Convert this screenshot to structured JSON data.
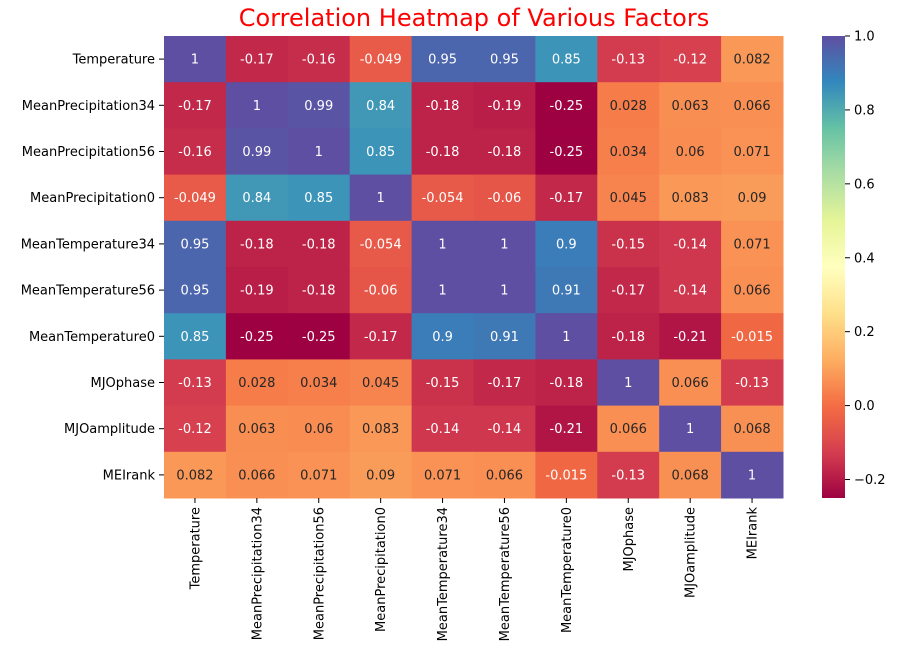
{
  "chart_data": {
    "type": "heatmap",
    "title": "Correlation Heatmap of Various Factors",
    "title_color": "#ff0000",
    "colormap": "Spectral",
    "row_labels": [
      "Temperature",
      "MeanPrecipitation34",
      "MeanPrecipitation56",
      "MeanPrecipitation0",
      "MeanTemperature34",
      "MeanTemperature56",
      "MeanTemperature0",
      "MJOphase",
      "MJOamplitude",
      "MEIrank"
    ],
    "col_labels": [
      "Temperature",
      "MeanPrecipitation34",
      "MeanPrecipitation56",
      "MeanPrecipitation0",
      "MeanTemperature34",
      "MeanTemperature56",
      "MeanTemperature0",
      "MJOphase",
      "MJOamplitude",
      "MEIrank"
    ],
    "values": [
      [
        1,
        -0.17,
        -0.16,
        -0.049,
        0.95,
        0.95,
        0.85,
        -0.13,
        -0.12,
        0.082
      ],
      [
        -0.17,
        1,
        0.99,
        0.84,
        -0.18,
        -0.19,
        -0.25,
        0.028,
        0.063,
        0.066
      ],
      [
        -0.16,
        0.99,
        1,
        0.85,
        -0.18,
        -0.18,
        -0.25,
        0.034,
        0.06,
        0.071
      ],
      [
        -0.049,
        0.84,
        0.85,
        1,
        -0.054,
        -0.06,
        -0.17,
        0.045,
        0.083,
        0.09
      ],
      [
        0.95,
        -0.18,
        -0.18,
        -0.054,
        1,
        1,
        0.9,
        -0.15,
        -0.14,
        0.071
      ],
      [
        0.95,
        -0.19,
        -0.18,
        -0.06,
        1,
        1,
        0.91,
        -0.17,
        -0.14,
        0.066
      ],
      [
        0.85,
        -0.25,
        -0.25,
        -0.17,
        0.9,
        0.91,
        1,
        -0.18,
        -0.21,
        -0.015
      ],
      [
        -0.13,
        0.028,
        0.034,
        0.045,
        -0.15,
        -0.17,
        -0.18,
        1,
        0.066,
        -0.13
      ],
      [
        -0.12,
        0.063,
        0.06,
        0.083,
        -0.14,
        -0.14,
        -0.21,
        0.066,
        1,
        0.068
      ],
      [
        0.082,
        0.066,
        0.071,
        0.09,
        0.071,
        0.066,
        -0.015,
        -0.13,
        0.068,
        1
      ]
    ],
    "value_labels": [
      [
        "1",
        "-0.17",
        "-0.16",
        "-0.049",
        "0.95",
        "0.95",
        "0.85",
        "-0.13",
        "-0.12",
        "0.082"
      ],
      [
        "-0.17",
        "1",
        "0.99",
        "0.84",
        "-0.18",
        "-0.19",
        "-0.25",
        "0.028",
        "0.063",
        "0.066"
      ],
      [
        "-0.16",
        "0.99",
        "1",
        "0.85",
        "-0.18",
        "-0.18",
        "-0.25",
        "0.034",
        "0.06",
        "0.071"
      ],
      [
        "-0.049",
        "0.84",
        "0.85",
        "1",
        "-0.054",
        "-0.06",
        "-0.17",
        "0.045",
        "0.083",
        "0.09"
      ],
      [
        "0.95",
        "-0.18",
        "-0.18",
        "-0.054",
        "1",
        "1",
        "0.9",
        "-0.15",
        "-0.14",
        "0.071"
      ],
      [
        "0.95",
        "-0.19",
        "-0.18",
        "-0.06",
        "1",
        "1",
        "0.91",
        "-0.17",
        "-0.14",
        "0.066"
      ],
      [
        "0.85",
        "-0.25",
        "-0.25",
        "-0.17",
        "0.9",
        "0.91",
        "1",
        "-0.18",
        "-0.21",
        "-0.015"
      ],
      [
        "-0.13",
        "0.028",
        "0.034",
        "0.045",
        "-0.15",
        "-0.17",
        "-0.18",
        "1",
        "0.066",
        "-0.13"
      ],
      [
        "-0.12",
        "0.063",
        "0.06",
        "0.083",
        "-0.14",
        "-0.14",
        "-0.21",
        "0.066",
        "1",
        "0.068"
      ],
      [
        "0.082",
        "0.066",
        "0.071",
        "0.09",
        "0.071",
        "0.066",
        "-0.015",
        "-0.13",
        "0.068",
        "1"
      ]
    ],
    "vmin": -0.25,
    "vmax": 1.0,
    "colorbar_ticks": [
      1.0,
      0.8,
      0.6,
      0.4,
      0.2,
      0.0,
      -0.2
    ],
    "colorbar_tick_labels": [
      "1.0",
      "0.8",
      "0.6",
      "0.4",
      "0.2",
      "0.0",
      "−0.2"
    ]
  }
}
